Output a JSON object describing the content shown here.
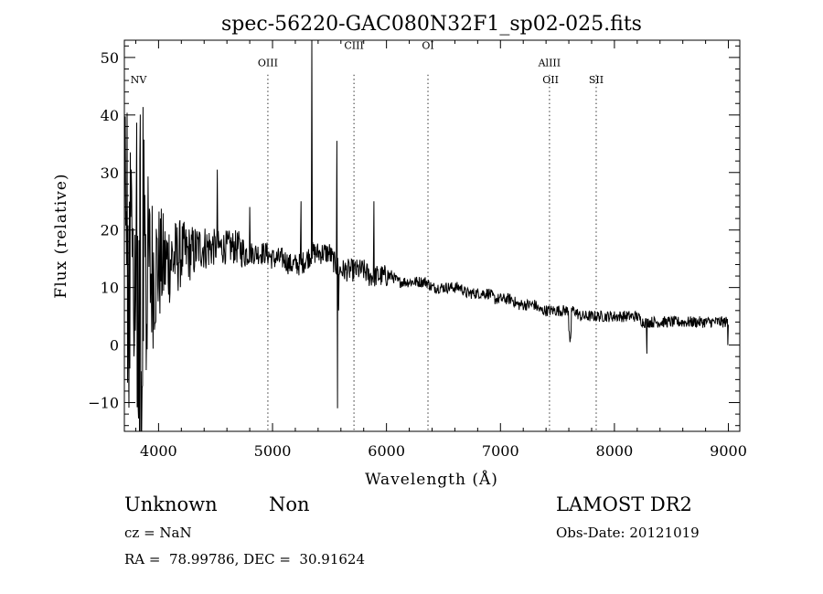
{
  "chart_data": {
    "type": "line",
    "title": "spec-56220-GAC080N32F1_sp02-025.fits",
    "xlabel": "Wavelength (Å)",
    "ylabel": "Flux (relative)",
    "xlim": [
      3700,
      9100
    ],
    "ylim": [
      -15,
      53
    ],
    "xticks": [
      4000,
      5000,
      6000,
      7000,
      8000,
      9000
    ],
    "yticks": [
      -10,
      0,
      10,
      20,
      30,
      40,
      50
    ],
    "xtick_labels": [
      "4000",
      "5000",
      "6000",
      "7000",
      "8000",
      "9000"
    ],
    "ytick_labels": [
      "−10",
      "0",
      "10",
      "20",
      "30",
      "40",
      "50"
    ],
    "grid": false,
    "lines": [
      {
        "label": "NV",
        "x": 3825,
        "label_y": 45.5,
        "marker": false
      },
      {
        "label": "OIII",
        "x": 4959,
        "label_y": 48.5,
        "marker": true
      },
      {
        "label": "CIII",
        "x": 5715,
        "label_y": 51.5,
        "marker": true
      },
      {
        "label": "OI",
        "x": 6364,
        "label_y": 51.5,
        "marker": true
      },
      {
        "label": "AlIII",
        "x": 7430,
        "label_y": 48.5,
        "marker": true
      },
      {
        "label": "OII",
        "x": 7440,
        "label_y": 45.5,
        "marker": false
      },
      {
        "label": "SII",
        "x": 7840,
        "label_y": 45.5,
        "marker": true
      }
    ],
    "spikes": [
      {
        "x": 5250,
        "y": 25
      },
      {
        "x": 5345,
        "y": 53
      },
      {
        "x": 5350,
        "y": 15
      },
      {
        "x": 5565,
        "y": 35.5
      },
      {
        "x": 5570,
        "y": -11
      },
      {
        "x": 5580,
        "y": 6
      },
      {
        "x": 5890,
        "y": 25
      },
      {
        "x": 4515,
        "y": 30.5
      },
      {
        "x": 4800,
        "y": 24
      },
      {
        "x": 7610,
        "y": 0.5
      },
      {
        "x": 8285,
        "y": -1.5
      },
      {
        "x": 8995,
        "y": 0
      }
    ],
    "series": [
      {
        "x": [
          3700,
          3750,
          3800,
          3850,
          3900,
          3950,
          4000,
          4050,
          4100,
          4150,
          4200,
          4250,
          4300,
          4350,
          4400,
          4450,
          4500,
          4550,
          4600,
          4650,
          4700,
          4750,
          4800,
          4850,
          4900,
          4950,
          5000,
          5050,
          5100,
          5150,
          5200,
          5250,
          5300,
          5350,
          5400,
          5450,
          5500,
          5550,
          5600,
          5650,
          5700,
          5750,
          5800,
          5850,
          5900,
          5950,
          6000,
          6050,
          6100,
          6150,
          6200,
          6250,
          6300,
          6350,
          6400,
          6450,
          6500,
          6550,
          6600,
          6650,
          6700,
          6750,
          6800,
          6850,
          6900,
          6950,
          7000,
          7050,
          7100,
          7150,
          7200,
          7250,
          7300,
          7350,
          7400,
          7450,
          7500,
          7550,
          7600,
          7650,
          7700,
          7750,
          7800,
          7850,
          7900,
          7950,
          8000,
          8050,
          8100,
          8150,
          8200,
          8250,
          8300,
          8350,
          8400,
          8450,
          8500,
          8550,
          8600,
          8650,
          8700,
          8750,
          8800,
          8850,
          8900,
          8950,
          9000
        ],
        "y": [
          10,
          11,
          12,
          12,
          13,
          13,
          14,
          14,
          15,
          15,
          16,
          16,
          16,
          17,
          17,
          17,
          17,
          17,
          17,
          17,
          17,
          16,
          16,
          16,
          16,
          16,
          15,
          15,
          15,
          14,
          14,
          14,
          15,
          16,
          16,
          16,
          16,
          14,
          13,
          13,
          13,
          13,
          13,
          12,
          12,
          12,
          12,
          12,
          11,
          11,
          11,
          11,
          11,
          11,
          10,
          10,
          10,
          10,
          10,
          10,
          9,
          9,
          9,
          9,
          9,
          8,
          8,
          8,
          8,
          7,
          7,
          7,
          7,
          6,
          6,
          6,
          6,
          6,
          6,
          6,
          5,
          5,
          5,
          5,
          5,
          5,
          5,
          5,
          5,
          5,
          5,
          4,
          4,
          4,
          4,
          4,
          4,
          4,
          4,
          4,
          4,
          4,
          4,
          4,
          4,
          4,
          4
        ],
        "noise": [
          22,
          22,
          22,
          20,
          18,
          14,
          11,
          9,
          8,
          7,
          6,
          5,
          5,
          4,
          4,
          4,
          3,
          3,
          3,
          3,
          3,
          3,
          2,
          2,
          2,
          2,
          2,
          2,
          2,
          2,
          2,
          2,
          2,
          2,
          2,
          2,
          2,
          2,
          2,
          2,
          2,
          2,
          2,
          2,
          2,
          2,
          2,
          1,
          1,
          1,
          1,
          1,
          1,
          1,
          1,
          1,
          1,
          1,
          1,
          1,
          1,
          1,
          1,
          1,
          1,
          1,
          1,
          1,
          1,
          1,
          1,
          1,
          1,
          1,
          1,
          1,
          1,
          1,
          1,
          1,
          1,
          1,
          1,
          1,
          1,
          1,
          1,
          1,
          1,
          1,
          1,
          1,
          1,
          1,
          1,
          1,
          1,
          1,
          1,
          1,
          1,
          1,
          1,
          1,
          1,
          1,
          1
        ]
      }
    ]
  },
  "info": {
    "class": "Unknown",
    "subclass": "Non",
    "cz": "cz = NaN",
    "radec": "RA =  78.99786, DEC =  30.91624",
    "survey": "LAMOST DR2",
    "obsdate": "Obs-Date: 20121019"
  }
}
